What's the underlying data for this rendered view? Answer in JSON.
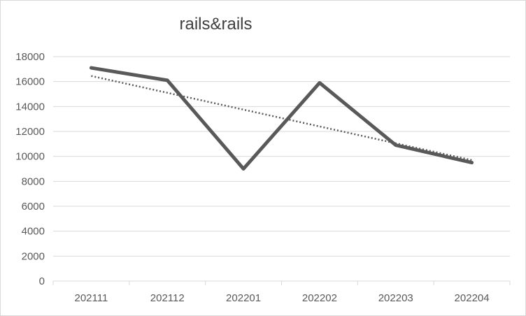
{
  "chart_data": {
    "type": "line",
    "title": "rails&rails",
    "categories": [
      "202111",
      "202112",
      "202201",
      "202202",
      "202203",
      "202204"
    ],
    "series": [
      {
        "values": [
          17100,
          16100,
          9000,
          15900,
          10900,
          9500
        ],
        "color": "#595959"
      }
    ],
    "trendline": {
      "type": "linear",
      "start": 16450,
      "end": 9700,
      "style": "dotted",
      "color": "#595959"
    },
    "ylim": [
      0,
      18000
    ],
    "yticks": [
      0,
      2000,
      4000,
      6000,
      8000,
      10000,
      12000,
      14000,
      16000,
      18000
    ],
    "grid": true,
    "legend": "none"
  }
}
